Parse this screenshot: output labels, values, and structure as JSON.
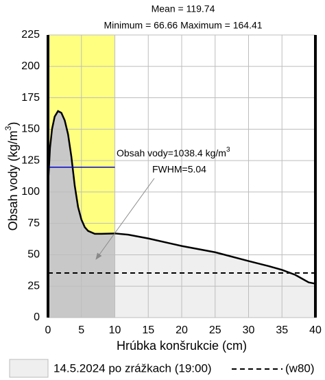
{
  "chart_data": {
    "type": "area",
    "header_lines": [
      "Mean = 119.74",
      "Minimum = 66.66 Maximum = 164.41"
    ],
    "x_label": "Hrúbka konšrukcie (cm)",
    "y_label": [
      "Obsah vody (kg/m",
      "3",
      ")"
    ],
    "x": [
      0,
      0.3,
      0.6,
      1,
      1.5,
      2,
      2.5,
      3,
      3.5,
      4,
      4.5,
      5,
      5.5,
      6,
      7,
      8,
      10,
      12,
      15,
      20,
      25,
      30,
      33,
      35,
      37,
      38,
      39,
      40
    ],
    "series": [
      {
        "name": "14.5.2024 po zrážkach (19:00)",
        "color": "#000000",
        "fill": "#efefef",
        "fill_dark": "#c8c8c8",
        "values": [
          105,
          135,
          150,
          160,
          164.4,
          163,
          157,
          146,
          128,
          105,
          88,
          78,
          72,
          69,
          66.7,
          66.7,
          67,
          66,
          63,
          57,
          52,
          45,
          41,
          38,
          34,
          31,
          28,
          27
        ]
      }
    ],
    "hline": {
      "name": "(w80)",
      "value": 35.5,
      "color": "#000000"
    },
    "highlight": {
      "x": [
        0,
        10
      ],
      "color": "#ffff80"
    },
    "mean_line": {
      "value": 119.74,
      "x": [
        0,
        10
      ],
      "color": "#0000cc"
    },
    "annotations": [
      [
        "Obsah vody=1038.4 kg/m",
        "3"
      ],
      [
        "FWHM=5.04"
      ]
    ],
    "xlim": [
      0,
      40
    ],
    "xticks": [
      0,
      5,
      10,
      15,
      20,
      25,
      30,
      35,
      40
    ],
    "ylim": [
      0,
      225
    ],
    "yticks": [
      0,
      25,
      50,
      75,
      100,
      125,
      150,
      175,
      200,
      225
    ],
    "grid": true
  }
}
